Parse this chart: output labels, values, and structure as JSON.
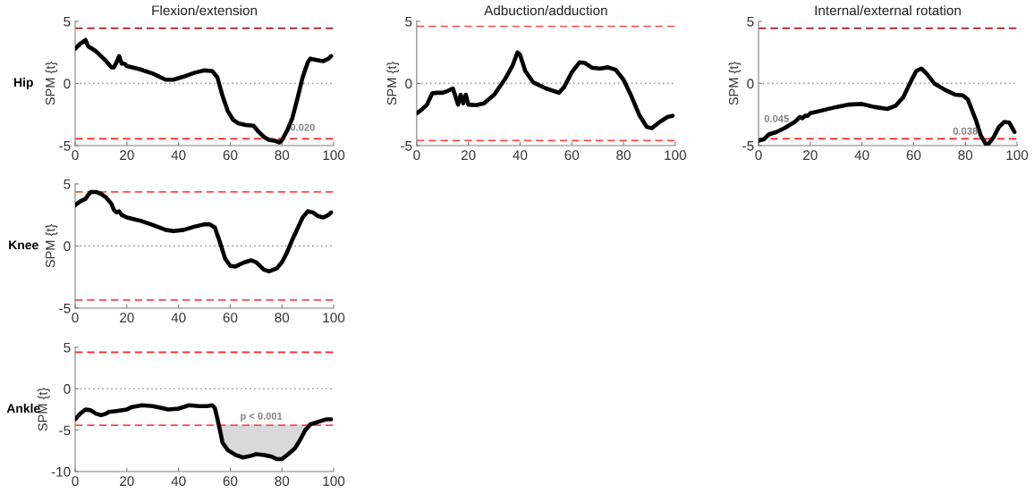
{
  "chart_data": [
    {
      "type": "line",
      "title": "Flexion/extension",
      "ylabel": "SPM {t}",
      "xlim": [
        0,
        100
      ],
      "xticks": [
        0,
        20,
        40,
        60,
        80,
        100
      ],
      "ylim": [
        -5,
        5
      ],
      "yticks": [
        -5,
        0,
        5
      ],
      "grid": false,
      "line_style": "solid",
      "annotations": [
        "Hip",
        "0.020"
      ],
      "ref_lines": [
        {
          "axis": "y",
          "value": 4.45,
          "color": "#a01818",
          "line_style": "dashed"
        },
        {
          "axis": "y",
          "value": -4.45,
          "color": "#ff2020",
          "line_style": "dashed"
        },
        {
          "axis": "y",
          "value": 0,
          "color": "#a0a0a0",
          "line_style": "dotted"
        }
      ],
      "series": [
        {
          "color": "#000000",
          "x": [
            0,
            2,
            4,
            5,
            8,
            10,
            12,
            14,
            15,
            16,
            17,
            18,
            19,
            20,
            25,
            30,
            35,
            38,
            42,
            46,
            50,
            53,
            55,
            57,
            59,
            61,
            63,
            66,
            69,
            71,
            73,
            75,
            77,
            79,
            80,
            82,
            84,
            86,
            88,
            90,
            91,
            93,
            96,
            98,
            99
          ],
          "values": [
            2.8,
            3.2,
            3.5,
            3.0,
            2.6,
            2.2,
            1.8,
            1.3,
            1.3,
            1.7,
            2.2,
            1.6,
            1.6,
            1.4,
            1.15,
            0.8,
            0.3,
            0.3,
            0.55,
            0.85,
            1.05,
            1.0,
            0.5,
            -1.0,
            -2.2,
            -2.9,
            -3.2,
            -3.35,
            -3.4,
            -3.9,
            -4.3,
            -4.55,
            -4.6,
            -4.75,
            -4.55,
            -3.8,
            -2.8,
            -1.2,
            0.5,
            1.7,
            2.0,
            1.9,
            1.8,
            2.0,
            2.2
          ]
        }
      ]
    },
    {
      "type": "line",
      "title": "Adbuction/adduction",
      "ylabel": "SPM {t}",
      "xlim": [
        0,
        100
      ],
      "xticks": [
        0,
        20,
        40,
        60,
        80,
        100
      ],
      "ylim": [
        -5,
        5
      ],
      "yticks": [
        -5,
        0,
        5
      ],
      "grid": false,
      "line_style": "solid",
      "ref_lines": [
        {
          "axis": "y",
          "value": 4.6,
          "color": "#ff4848",
          "line_style": "dashed"
        },
        {
          "axis": "y",
          "value": -4.6,
          "color": "#ff4848",
          "line_style": "dashed"
        },
        {
          "axis": "y",
          "value": 0,
          "color": "#a0a0a0",
          "line_style": "dotted"
        }
      ],
      "series": [
        {
          "color": "#000000",
          "x": [
            0,
            2,
            4,
            6,
            8,
            10,
            12,
            14,
            16,
            17,
            18,
            19,
            20,
            23,
            26,
            30,
            34,
            37,
            39,
            40,
            42,
            45,
            50,
            55,
            57,
            60,
            63,
            65,
            68,
            71,
            74,
            77,
            80,
            83,
            86,
            89,
            91,
            94,
            97,
            99
          ],
          "values": [
            -2.4,
            -2.1,
            -1.7,
            -0.8,
            -0.75,
            -0.75,
            -0.6,
            -0.4,
            -1.7,
            -0.9,
            -1.6,
            -0.9,
            -1.7,
            -1.75,
            -1.6,
            -0.9,
            0.3,
            1.4,
            2.5,
            2.3,
            1.0,
            0.1,
            -0.4,
            -0.75,
            -0.3,
            0.9,
            1.7,
            1.65,
            1.25,
            1.2,
            1.3,
            1.1,
            0.3,
            -1.0,
            -2.5,
            -3.5,
            -3.6,
            -3.1,
            -2.7,
            -2.6
          ]
        }
      ]
    },
    {
      "type": "line",
      "title": "Internal/external rotation",
      "ylabel": "SPM {t}",
      "xlim": [
        0,
        100
      ],
      "xticks": [
        0,
        20,
        40,
        60,
        80,
        100
      ],
      "ylim": [
        -5,
        5
      ],
      "yticks": [
        -5,
        0,
        5
      ],
      "grid": false,
      "line_style": "solid",
      "annotations": [
        "0.045",
        "0.038"
      ],
      "ref_lines": [
        {
          "axis": "y",
          "value": 4.45,
          "color": "#a01818",
          "line_style": "dashed"
        },
        {
          "axis": "y",
          "value": -4.45,
          "color": "#ff2020",
          "line_style": "dashed"
        },
        {
          "axis": "y",
          "value": 0,
          "color": "#a0a0a0",
          "line_style": "dotted"
        }
      ],
      "series": [
        {
          "color": "#000000",
          "x": [
            0,
            2,
            4,
            7,
            10,
            14,
            16,
            17,
            18,
            19,
            20,
            25,
            30,
            35,
            40,
            45,
            50,
            53,
            56,
            59,
            61,
            63,
            65,
            68,
            72,
            76,
            79,
            81,
            84,
            86,
            88,
            89,
            91,
            93,
            95,
            97,
            99
          ],
          "values": [
            -4.6,
            -4.5,
            -4.1,
            -3.9,
            -3.6,
            -3.1,
            -2.7,
            -2.8,
            -2.6,
            -2.6,
            -2.4,
            -2.15,
            -1.9,
            -1.7,
            -1.65,
            -1.9,
            -2.05,
            -1.8,
            -1.1,
            0.2,
            1.0,
            1.2,
            0.8,
            0.0,
            -0.5,
            -0.9,
            -0.95,
            -1.3,
            -2.9,
            -4.2,
            -4.9,
            -4.85,
            -4.3,
            -3.5,
            -3.1,
            -3.15,
            -3.9
          ]
        }
      ]
    },
    {
      "type": "line",
      "ylabel": "SPM {t}",
      "xlim": [
        0,
        100
      ],
      "xticks": [
        0,
        20,
        40,
        60,
        80,
        100
      ],
      "ylim": [
        -5,
        5
      ],
      "yticks": [
        -5,
        0,
        5
      ],
      "grid": false,
      "line_style": "solid",
      "annotations": [
        "Knee"
      ],
      "ref_lines": [
        {
          "axis": "y",
          "value": 4.35,
          "color": "#ff4848",
          "line_style": "dashed"
        },
        {
          "axis": "y",
          "value": -4.35,
          "color": "#ff4848",
          "line_style": "dashed"
        },
        {
          "axis": "y",
          "value": 0,
          "color": "#a0a0a0",
          "line_style": "dotted"
        }
      ],
      "series": [
        {
          "color": "#000000",
          "x": [
            0,
            2,
            4,
            5,
            6,
            8,
            10,
            12,
            14,
            15,
            16,
            17,
            18,
            20,
            25,
            30,
            35,
            38,
            42,
            46,
            50,
            52,
            54,
            56,
            58,
            60,
            62,
            65,
            68,
            70,
            73,
            75,
            78,
            80,
            82,
            84,
            86,
            88,
            90,
            92,
            94,
            96,
            98,
            99
          ],
          "values": [
            3.3,
            3.6,
            3.8,
            4.1,
            4.35,
            4.35,
            4.2,
            3.9,
            3.4,
            2.9,
            2.7,
            2.8,
            2.5,
            2.3,
            2.05,
            1.7,
            1.3,
            1.2,
            1.3,
            1.55,
            1.75,
            1.75,
            1.5,
            0.3,
            -1.0,
            -1.6,
            -1.65,
            -1.35,
            -1.15,
            -1.3,
            -1.9,
            -2.05,
            -1.8,
            -1.3,
            -0.5,
            0.5,
            1.4,
            2.3,
            2.8,
            2.7,
            2.4,
            2.3,
            2.5,
            2.7
          ]
        }
      ]
    },
    {
      "type": "line",
      "ylabel": "SPM {t}",
      "xlim": [
        0,
        100
      ],
      "xticks": [
        0,
        20,
        40,
        60,
        80,
        100
      ],
      "ylim": [
        -10,
        5
      ],
      "yticks": [
        -10,
        -5,
        0,
        5
      ],
      "grid": false,
      "line_style": "solid",
      "annotations": [
        "Ankle",
        "p < 0.001"
      ],
      "ref_lines": [
        {
          "axis": "y",
          "value": 4.4,
          "color": "#ff2020",
          "line_style": "dashed"
        },
        {
          "axis": "y",
          "value": -4.4,
          "color": "#ff4848",
          "line_style": "dashed"
        },
        {
          "axis": "y",
          "value": 0,
          "color": "#a0a0a0",
          "line_style": "dotted"
        }
      ],
      "series": [
        {
          "color": "#000000",
          "x": [
            0,
            2,
            4,
            6,
            8,
            10,
            12,
            13,
            16,
            20,
            22,
            26,
            30,
            33,
            36,
            40,
            44,
            48,
            51,
            53,
            54,
            55,
            56,
            57,
            59,
            62,
            65,
            68,
            70,
            73,
            76,
            78,
            80,
            82,
            85,
            87,
            89,
            91,
            93,
            95,
            97,
            99
          ],
          "values": [
            -3.7,
            -3.0,
            -2.5,
            -2.6,
            -3.0,
            -3.2,
            -3.0,
            -2.8,
            -2.7,
            -2.5,
            -2.2,
            -2.0,
            -2.1,
            -2.3,
            -2.5,
            -2.4,
            -2.0,
            -2.1,
            -2.1,
            -2.0,
            -2.3,
            -3.6,
            -5.0,
            -6.5,
            -7.4,
            -8.0,
            -8.3,
            -8.1,
            -7.9,
            -8.0,
            -8.2,
            -8.5,
            -8.5,
            -8.0,
            -7.2,
            -6.2,
            -5.0,
            -4.3,
            -4.1,
            -3.9,
            -3.7,
            -3.7
          ],
          "lower": [
            null,
            null,
            null,
            null,
            null,
            null,
            null,
            null,
            null,
            null,
            null,
            null,
            null,
            null,
            null,
            null,
            null,
            null,
            null,
            null,
            null,
            null,
            -5.0,
            -6.5,
            -7.4,
            -8.0,
            -8.3,
            -8.1,
            -7.9,
            -8.0,
            -8.2,
            -8.5,
            -8.5,
            -8.0,
            -7.2,
            -6.2,
            -5.0,
            null,
            null,
            null,
            null,
            null
          ],
          "upper": [
            null,
            null,
            null,
            null,
            null,
            null,
            null,
            null,
            null,
            null,
            null,
            null,
            null,
            null,
            null,
            null,
            null,
            null,
            null,
            null,
            null,
            null,
            -4.4,
            -4.4,
            -4.4,
            -4.4,
            -4.4,
            -4.4,
            -4.4,
            -4.4,
            -4.4,
            -4.4,
            -4.4,
            -4.4,
            -4.4,
            -4.4,
            -4.4,
            null,
            null,
            null,
            null,
            null
          ]
        }
      ]
    }
  ]
}
